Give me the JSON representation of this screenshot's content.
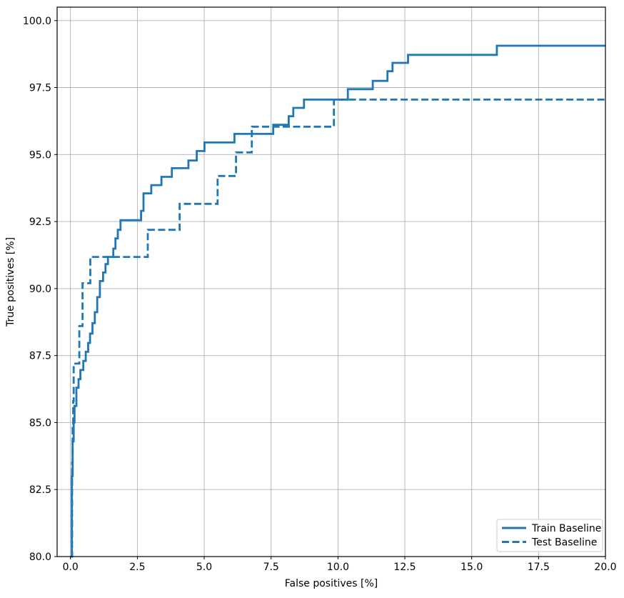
{
  "figure": {
    "accent_color": "#1f77b4",
    "grid_color": "#b0b0b0",
    "spine_color": "#000000",
    "background_color": "#ffffff",
    "legend_border_color": "#cccccc"
  },
  "chart_data": {
    "type": "line",
    "subtype": "step-post-roc",
    "title": "",
    "xlabel": "False positives [%]",
    "ylabel": "True positives [%]",
    "xlim": [
      -0.5,
      20.0
    ],
    "ylim": [
      80.0,
      100.5
    ],
    "grid": true,
    "legend_position": "lower right",
    "x_ticks": [
      0.0,
      2.5,
      5.0,
      7.5,
      10.0,
      12.5,
      15.0,
      17.5,
      20.0
    ],
    "x_tick_labels": [
      "0.0",
      "2.5",
      "5.0",
      "7.5",
      "10.0",
      "12.5",
      "15.0",
      "17.5",
      "20.0"
    ],
    "y_ticks": [
      80.0,
      82.5,
      85.0,
      87.5,
      90.0,
      92.5,
      95.0,
      97.5,
      100.0
    ],
    "y_tick_labels": [
      "80.0",
      "82.5",
      "85.0",
      "87.5",
      "90.0",
      "92.5",
      "95.0",
      "97.5",
      "100.0"
    ],
    "series": [
      {
        "name": "Train Baseline",
        "style": "solid",
        "color": "#1f77b4",
        "step_points": [
          [
            0.0,
            80.0
          ],
          [
            0.05,
            83.0
          ],
          [
            0.08,
            84.3
          ],
          [
            0.12,
            85.0
          ],
          [
            0.15,
            85.62
          ],
          [
            0.22,
            86.3
          ],
          [
            0.3,
            86.62
          ],
          [
            0.37,
            86.96
          ],
          [
            0.48,
            87.3
          ],
          [
            0.57,
            87.64
          ],
          [
            0.66,
            87.97
          ],
          [
            0.73,
            88.32
          ],
          [
            0.82,
            88.71
          ],
          [
            0.91,
            89.12
          ],
          [
            1.0,
            89.68
          ],
          [
            1.1,
            90.28
          ],
          [
            1.22,
            90.6
          ],
          [
            1.31,
            90.91
          ],
          [
            1.4,
            91.18
          ],
          [
            1.6,
            91.49
          ],
          [
            1.68,
            91.87
          ],
          [
            1.77,
            92.19
          ],
          [
            1.87,
            92.55
          ],
          [
            2.64,
            92.9
          ],
          [
            2.73,
            93.55
          ],
          [
            3.02,
            93.86
          ],
          [
            3.4,
            94.17
          ],
          [
            3.79,
            94.49
          ],
          [
            4.41,
            94.78
          ],
          [
            4.72,
            95.13
          ],
          [
            5.01,
            95.45
          ],
          [
            6.13,
            95.77
          ],
          [
            7.58,
            96.11
          ],
          [
            8.16,
            96.43
          ],
          [
            8.33,
            96.74
          ],
          [
            8.73,
            97.05
          ],
          [
            10.37,
            97.44
          ],
          [
            11.3,
            97.75
          ],
          [
            11.85,
            98.11
          ],
          [
            12.04,
            98.42
          ],
          [
            12.62,
            98.72
          ],
          [
            15.94,
            99.06
          ],
          [
            20.0,
            99.06
          ]
        ]
      },
      {
        "name": "Test Baseline",
        "style": "dashed",
        "color": "#1f77b4",
        "step_points": [
          [
            0.0,
            80.0
          ],
          [
            0.06,
            83.5
          ],
          [
            0.08,
            84.8
          ],
          [
            0.1,
            85.8
          ],
          [
            0.12,
            87.2
          ],
          [
            0.33,
            88.6
          ],
          [
            0.45,
            90.2
          ],
          [
            0.74,
            91.18
          ],
          [
            2.89,
            92.19
          ],
          [
            4.08,
            93.16
          ],
          [
            5.5,
            94.2
          ],
          [
            6.19,
            95.08
          ],
          [
            6.78,
            96.04
          ],
          [
            9.85,
            97.05
          ],
          [
            20.0,
            97.05
          ]
        ]
      }
    ]
  },
  "legend": {
    "items": [
      {
        "label": "Train Baseline",
        "line_style": "solid"
      },
      {
        "label": "Test Baseline",
        "line_style": "dashed"
      }
    ]
  }
}
